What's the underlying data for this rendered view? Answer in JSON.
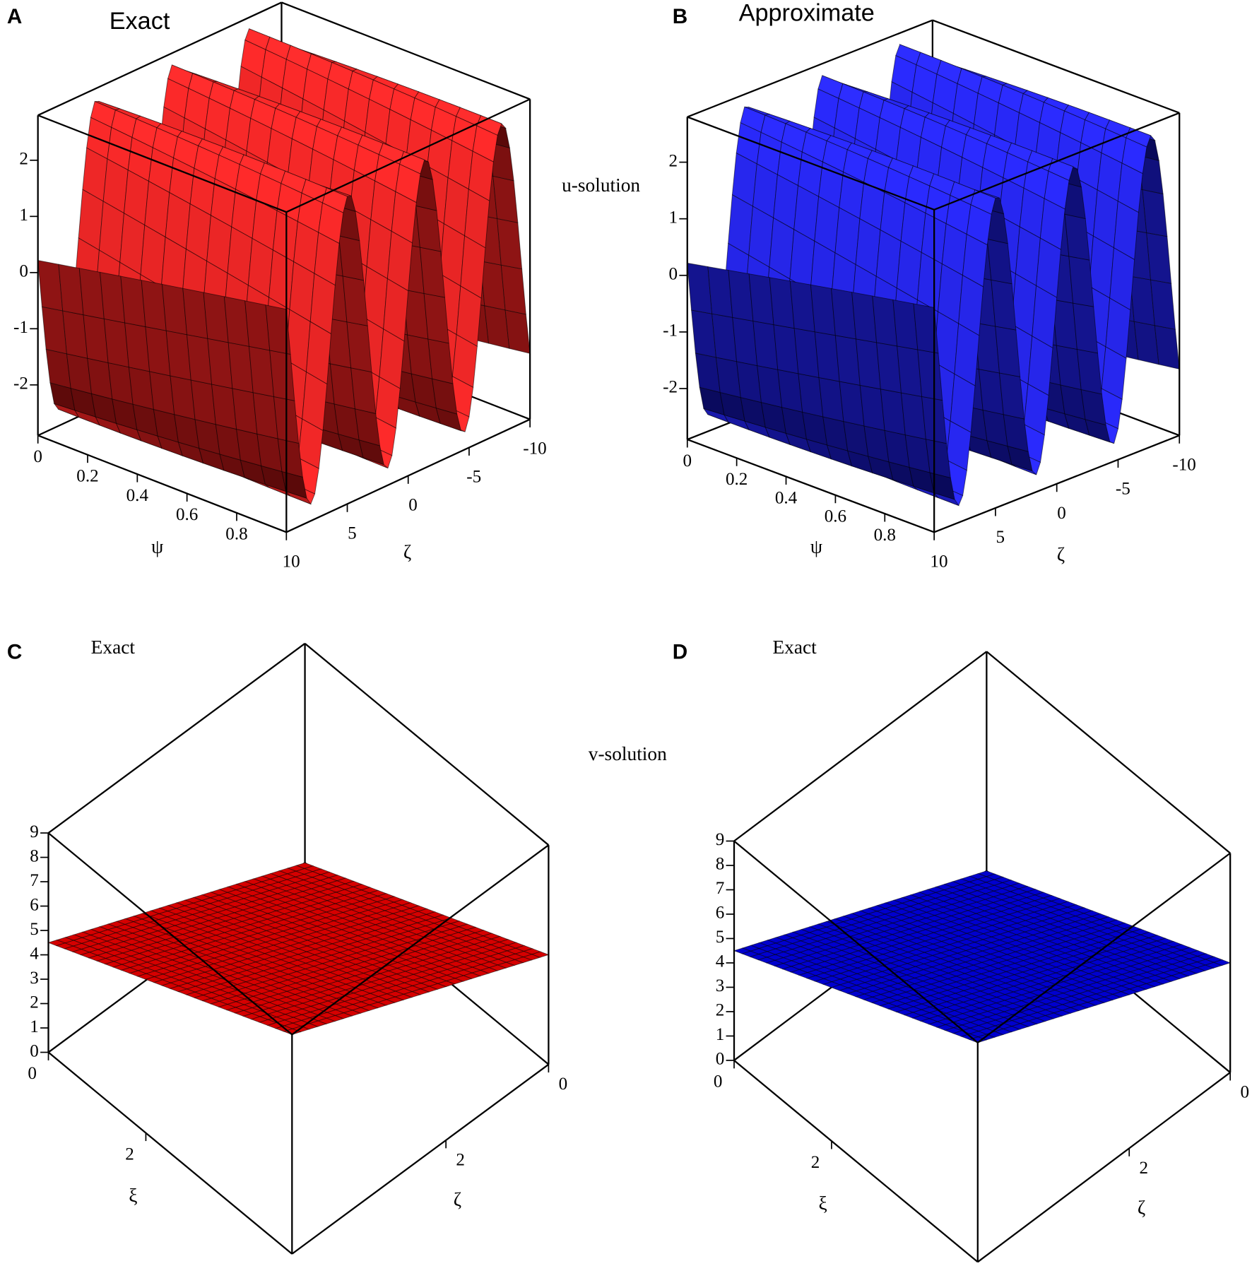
{
  "row_labels": [
    "u-solution",
    "v-solution"
  ],
  "chart_data": [
    {
      "type": "surface",
      "panel": "A",
      "title": "Exact",
      "color": "#ff1a1a",
      "xlabel": "ψ",
      "xlim": [
        0,
        1
      ],
      "xticks": [
        0,
        0.2,
        0.4,
        0.6,
        0.8
      ],
      "ylabel": "ζ",
      "ylim": [
        10,
        -10
      ],
      "yticks": [
        10,
        5,
        0,
        -5,
        -10
      ],
      "zlim": [
        -2.9,
        2.8
      ],
      "zticks": [
        -2,
        -1,
        0,
        1,
        2
      ]
    },
    {
      "type": "surface",
      "panel": "B",
      "title": "Approximate",
      "color": "#1a1aff",
      "xlabel": "ψ",
      "xlim": [
        0,
        1
      ],
      "xticks": [
        0,
        0.2,
        0.4,
        0.6,
        0.8
      ],
      "ylabel": "ζ",
      "ylim": [
        10,
        -10
      ],
      "yticks": [
        10,
        5,
        0,
        -5,
        -10
      ],
      "zlim": [
        -2.9,
        2.8
      ],
      "zticks": [
        -2,
        -1,
        0,
        1,
        2
      ]
    },
    {
      "type": "surface",
      "panel": "C",
      "title": "Exact",
      "color": "#e80000",
      "xlabel": "ξ",
      "xlim": [
        0,
        5
      ],
      "xticks": [
        0,
        2
      ],
      "ylabel": "ζ",
      "ylim": [
        0,
        5
      ],
      "yticks": [
        0,
        2
      ],
      "zlim": [
        0,
        9
      ],
      "zticks": [
        0,
        1,
        2,
        3,
        4,
        5,
        6,
        7,
        8,
        9
      ]
    },
    {
      "type": "surface",
      "panel": "D",
      "title": "Exact",
      "color": "#0000e0",
      "xlabel": "ξ",
      "xlim": [
        0,
        5
      ],
      "xticks": [
        0,
        2
      ],
      "ylabel": "ζ",
      "ylim": [
        0,
        5
      ],
      "yticks": [
        0,
        2
      ],
      "zlim": [
        0,
        9
      ],
      "zticks": [
        0,
        1,
        2,
        3,
        4,
        5,
        6,
        7,
        8,
        9
      ]
    }
  ]
}
